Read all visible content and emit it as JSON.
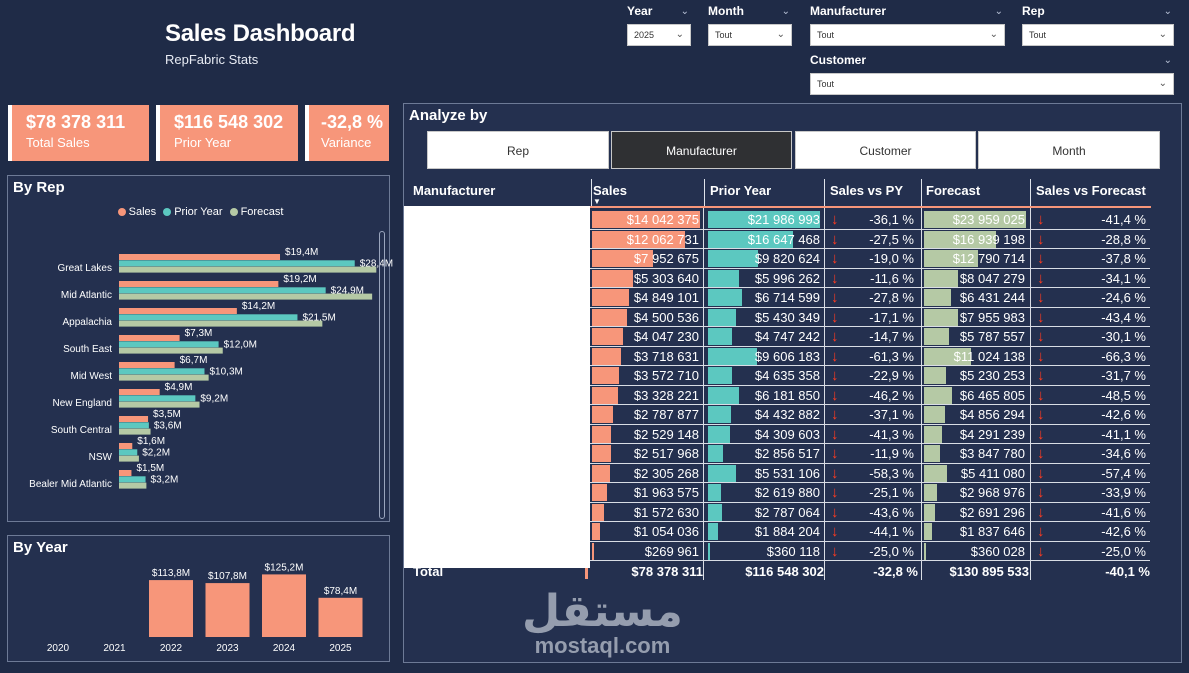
{
  "header": {
    "title": "Sales Dashboard",
    "subtitle": "RepFabric Stats"
  },
  "filters": {
    "year": {
      "label": "Year",
      "value": "2025"
    },
    "month": {
      "label": "Month",
      "value": "Tout"
    },
    "manufacturer": {
      "label": "Manufacturer",
      "value": "Tout"
    },
    "rep": {
      "label": "Rep",
      "value": "Tout"
    },
    "customer": {
      "label": "Customer",
      "value": "Tout"
    }
  },
  "kpis": {
    "total_sales": {
      "value": "$78 378 311",
      "label": "Total Sales"
    },
    "prior_year": {
      "value": "$116 548 302",
      "label": "Prior Year"
    },
    "variance": {
      "value": "-32,8 %",
      "label": "Variance"
    }
  },
  "by_rep": {
    "title": "By Rep",
    "legend": {
      "sales": "Sales",
      "prior": "Prior Year",
      "forecast": "Forecast"
    }
  },
  "by_year": {
    "title": "By Year"
  },
  "analyze": {
    "title": "Analyze by",
    "tabs": [
      "Rep",
      "Manufacturer",
      "Customer",
      "Month"
    ],
    "active_tab": "Manufacturer",
    "columns": [
      "Manufacturer",
      "Sales",
      "Prior Year",
      "Sales vs PY",
      "Forecast",
      "Sales vs Forecast"
    ],
    "rows": [
      {
        "sales": "$14 042 375",
        "prior": "$21 986 993",
        "vspy": "-36,1 %",
        "forecast": "$23 959 025",
        "vsfc": "-41,4 %",
        "s": 14042375,
        "p": 21986993,
        "f": 23959025
      },
      {
        "sales": "$12 062 731",
        "prior": "$16 647 468",
        "vspy": "-27,5 %",
        "forecast": "$16 939 198",
        "vsfc": "-28,8 %",
        "s": 12062731,
        "p": 16647468,
        "f": 16939198
      },
      {
        "sales": "$7 952 675",
        "prior": "$9 820 624",
        "vspy": "-19,0 %",
        "forecast": "$12 790 714",
        "vsfc": "-37,8 %",
        "s": 7952675,
        "p": 9820624,
        "f": 12790714
      },
      {
        "sales": "$5 303 640",
        "prior": "$5 996 262",
        "vspy": "-11,6 %",
        "forecast": "$8 047 279",
        "vsfc": "-34,1 %",
        "s": 5303640,
        "p": 5996262,
        "f": 8047279
      },
      {
        "sales": "$4 849 101",
        "prior": "$6 714 599",
        "vspy": "-27,8 %",
        "forecast": "$6 431 244",
        "vsfc": "-24,6 %",
        "s": 4849101,
        "p": 6714599,
        "f": 6431244
      },
      {
        "sales": "$4 500 536",
        "prior": "$5 430 349",
        "vspy": "-17,1 %",
        "forecast": "$7 955 983",
        "vsfc": "-43,4 %",
        "s": 4500536,
        "p": 5430349,
        "f": 7955983
      },
      {
        "sales": "$4 047 230",
        "prior": "$4 747 242",
        "vspy": "-14,7 %",
        "forecast": "$5 787 557",
        "vsfc": "-30,1 %",
        "s": 4047230,
        "p": 4747242,
        "f": 5787557
      },
      {
        "sales": "$3 718 631",
        "prior": "$9 606 183",
        "vspy": "-61,3 %",
        "forecast": "$11 024 138",
        "vsfc": "-66,3 %",
        "s": 3718631,
        "p": 9606183,
        "f": 11024138
      },
      {
        "sales": "$3 572 710",
        "prior": "$4 635 358",
        "vspy": "-22,9 %",
        "forecast": "$5 230 253",
        "vsfc": "-31,7 %",
        "s": 3572710,
        "p": 4635358,
        "f": 5230253
      },
      {
        "sales": "$3 328 221",
        "prior": "$6 181 850",
        "vspy": "-46,2 %",
        "forecast": "$6 465 805",
        "vsfc": "-48,5 %",
        "s": 3328221,
        "p": 6181850,
        "f": 6465805
      },
      {
        "sales": "$2 787 877",
        "prior": "$4 432 882",
        "vspy": "-37,1 %",
        "forecast": "$4 856 294",
        "vsfc": "-42,6 %",
        "s": 2787877,
        "p": 4432882,
        "f": 4856294
      },
      {
        "sales": "$2 529 148",
        "prior": "$4 309 603",
        "vspy": "-41,3 %",
        "forecast": "$4 291 239",
        "vsfc": "-41,1 %",
        "s": 2529148,
        "p": 4309603,
        "f": 4291239
      },
      {
        "sales": "$2 517 968",
        "prior": "$2 856 517",
        "vspy": "-11,9 %",
        "forecast": "$3 847 780",
        "vsfc": "-34,6 %",
        "s": 2517968,
        "p": 2856517,
        "f": 3847780
      },
      {
        "sales": "$2 305 268",
        "prior": "$5 531 106",
        "vspy": "-58,3 %",
        "forecast": "$5 411 080",
        "vsfc": "-57,4 %",
        "s": 2305268,
        "p": 5531106,
        "f": 5411080
      },
      {
        "sales": "$1 963 575",
        "prior": "$2 619 880",
        "vspy": "-25,1 %",
        "forecast": "$2 968 976",
        "vsfc": "-33,9 %",
        "s": 1963575,
        "p": 2619880,
        "f": 2968976
      },
      {
        "sales": "$1 572 630",
        "prior": "$2 787 064",
        "vspy": "-43,6 %",
        "forecast": "$2 691 296",
        "vsfc": "-41,6 %",
        "s": 1572630,
        "p": 2787064,
        "f": 2691296
      },
      {
        "sales": "$1 054 036",
        "prior": "$1 884 204",
        "vspy": "-44,1 %",
        "forecast": "$1 837 646",
        "vsfc": "-42,6 %",
        "s": 1054036,
        "p": 1884204,
        "f": 1837646
      },
      {
        "sales": "$269 961",
        "prior": "$360 118",
        "vspy": "-25,0 %",
        "forecast": "$360 028",
        "vsfc": "-25,0 %",
        "s": 269961,
        "p": 360118,
        "f": 360028
      }
    ],
    "total": {
      "label": "Total",
      "sales": "$78 378 311",
      "prior": "$116 548 302",
      "vspy": "-32,8 %",
      "forecast": "$130 895 533",
      "vsfc": "-40,1 %"
    }
  },
  "colors": {
    "background": "#1f2b47",
    "panel": "#24304f",
    "sales": "#f7967a",
    "prior": "#5cc8c0",
    "forecast": "#b5c9a5",
    "arrow": "#ff3b1f"
  },
  "watermark": {
    "arabic": "مستقل",
    "latin": "mostaql.com"
  },
  "chart_data": [
    {
      "type": "bar",
      "title": "By Rep",
      "orientation": "horizontal",
      "categories": [
        "Great Lakes",
        "Mid Atlantic",
        "Appalachia",
        "South East",
        "Mid West",
        "New England",
        "South Central",
        "NSW",
        "Bealer Mid Atlantic"
      ],
      "series": [
        {
          "name": "Sales",
          "values": [
            19.4,
            19.2,
            14.2,
            7.3,
            6.7,
            4.9,
            3.5,
            1.6,
            1.5
          ],
          "labels": [
            "$19,4M",
            "$19,2M",
            "$14,2M",
            "$7,3M",
            "$6,7M",
            "$4,9M",
            "$3,5M",
            "$1,6M",
            "$1,5M"
          ]
        },
        {
          "name": "Prior Year",
          "values": [
            28.4,
            24.9,
            21.5,
            12.0,
            10.3,
            9.2,
            3.6,
            2.2,
            3.2
          ],
          "labels": [
            "$28,4M",
            "$24,9M",
            "$21,5M",
            "$12,0M",
            "$10,3M",
            "$9,2M",
            "$3,6M",
            "$2,2M",
            "$3,2M"
          ]
        },
        {
          "name": "Forecast",
          "values": [
            31.0,
            30.5,
            24.5,
            12.5,
            10.8,
            9.7,
            3.8,
            2.4,
            3.3
          ]
        }
      ],
      "legend": "top"
    },
    {
      "type": "bar",
      "title": "By Year",
      "categories": [
        "2020",
        "2021",
        "2022",
        "2023",
        "2024",
        "2025"
      ],
      "values": [
        0,
        0,
        113.8,
        107.8,
        125.2,
        78.4
      ],
      "labels": [
        "",
        "",
        "$113,8M",
        "$107,8M",
        "$125,2M",
        "$78,4M"
      ]
    }
  ]
}
